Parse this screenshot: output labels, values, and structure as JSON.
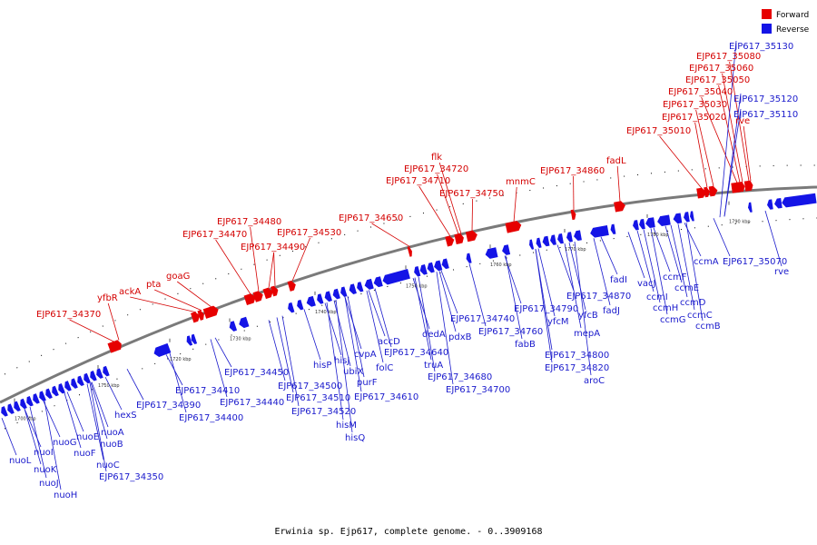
{
  "caption": "Erwinia sp. Ejp617, complete genome. - 0..3909168",
  "legend": [
    {
      "label": "Forward",
      "color": "#e60000"
    },
    {
      "label": "Reverse",
      "color": "#1414e6"
    }
  ],
  "colors": {
    "forward": "#e60000",
    "reverse": "#1414e6",
    "backbone": "#7a7a7a"
  },
  "ticks": [
    "1700 kbp",
    "1710 kbp",
    "1720 kbp",
    "1730 kbp",
    "1740 kbp",
    "1750 kbp",
    "1760 kbp",
    "1770 kbp",
    "1780 kbp",
    "1790 kbp"
  ],
  "forward_labels": [
    "EJP617_34370",
    "yfbR",
    "ackA",
    "pta",
    "goaG",
    "EJP617_34470",
    "EJP617_34480",
    "EJP617_34490",
    "EJP617_34530",
    "EJP617_34650",
    "EJP617_34710",
    "EJP617_34720",
    "flk",
    "EJP617_34750",
    "mnmC",
    "EJP617_34860",
    "fadL",
    "EJP617_35010",
    "EJP617_35020",
    "EJP617_35030",
    "EJP617_35040",
    "EJP617_35050",
    "EJP617_35060",
    "EJP617_35080",
    "rve"
  ],
  "reverse_labels": [
    "nuoL",
    "nuoI",
    "nuoK",
    "nuoJ",
    "nuoH",
    "nuoG",
    "nuoE",
    "nuoF",
    "nuoC",
    "nuoA",
    "nuoB",
    "hexS",
    "EJP617_34350",
    "EJP617_34390",
    "EJP617_34400",
    "EJP617_34410",
    "EJP617_34440",
    "EJP617_34450",
    "EJP617_34500",
    "EJP617_34510",
    "EJP617_34520",
    "hisM",
    "hisQ",
    "hisP",
    "hisJ",
    "ubiX",
    "purF",
    "cvpA",
    "folC",
    "accD",
    "EJP617_34610",
    "EJP617_34640",
    "dedA",
    "truA",
    "pdxB",
    "EJP617_34680",
    "EJP617_34700",
    "EJP617_34740",
    "EJP617_34760",
    "fabB",
    "EJP617_34790",
    "yfcM",
    "mepA",
    "EJP617_34800",
    "EJP617_34820",
    "aroC",
    "yfcB",
    "EJP617_34870",
    "fadI",
    "fadJ",
    "vacJ",
    "ccmI",
    "ccmH",
    "ccmG",
    "ccmF",
    "ccmE",
    "ccmD",
    "ccmC",
    "ccmB",
    "ccmA",
    "EJP617_35070",
    "rve",
    "EJP617_35110",
    "EJP617_35120",
    "EJP617_35130"
  ]
}
